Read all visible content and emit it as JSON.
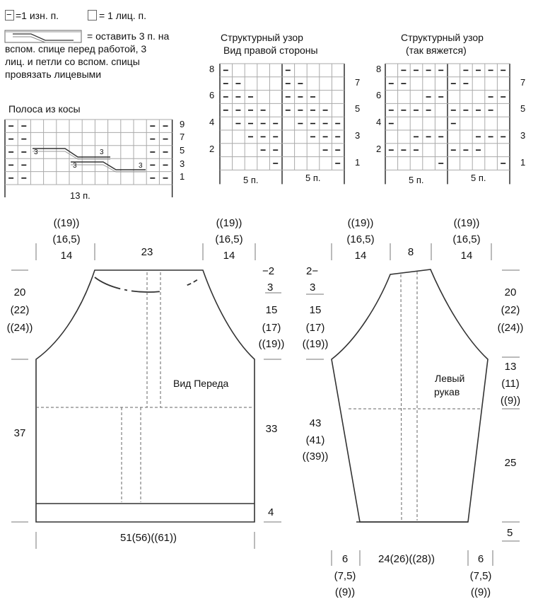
{
  "legend": {
    "purl_symbol": "−",
    "purl_label": "=1 изн. п.",
    "knit_label": "= 1 лиц. п.",
    "cable_num": "3",
    "cable_line1": "= оставить 3 п. на",
    "cable_line2": "вспом. спице перед работой, 3",
    "cable_line3": "лиц. и петли со вспом. спицы",
    "cable_line4": "провязать лицевыми"
  },
  "cable_chart": {
    "title": "Полоса из косы",
    "row_numbers": [
      "9",
      "7",
      "5",
      "3",
      "1"
    ],
    "width_label": "13 п.",
    "cell_mark": "3"
  },
  "texture_right": {
    "title_line1": "Структурный узор",
    "title_line2": "Вид правой стороны",
    "left_numbers": [
      "8",
      "6",
      "4",
      "2"
    ],
    "right_numbers": [
      "7",
      "5",
      "3",
      "1"
    ],
    "width_labels": [
      "5 п.",
      "5 п."
    ]
  },
  "texture_worked": {
    "title_line1": "Структурный узор",
    "title_line2": "(так вяжется)",
    "left_numbers": [
      "8",
      "6",
      "4",
      "2"
    ],
    "right_numbers": [
      "7",
      "5",
      "3",
      "1"
    ],
    "width_labels": [
      "5 п.",
      "5 п."
    ]
  },
  "front": {
    "label": "Вид Переда",
    "top_left": [
      "((19))",
      "(16,5)",
      "14"
    ],
    "top_center": "23",
    "top_right": [
      "((19))",
      "(16,5)",
      "14"
    ],
    "left_armhole": [
      "20",
      "(22)",
      "((24))"
    ],
    "left_body": "37",
    "right_neck_top": "−2",
    "right_neck_bottom": "3",
    "right_armhole": [
      "15",
      "(17)",
      "((19))"
    ],
    "right_body": "33",
    "right_rib": "4",
    "bottom_width": "51(56)((61))"
  },
  "sleeve": {
    "label_line1": "Левый",
    "label_line2": "рукав",
    "top_left": [
      "((19))",
      "(16,5)",
      "14"
    ],
    "top_center": "8",
    "top_right": [
      "((19))",
      "(16,5)",
      "14"
    ],
    "left_neck_top": "2−",
    "left_neck_bottom": "3",
    "left_raglan": [
      "15",
      "(17)",
      "((19))"
    ],
    "left_body": [
      "43",
      "(41)",
      "((39))"
    ],
    "right_raglan": [
      "20",
      "(22)",
      "((24))"
    ],
    "right_upper": [
      "13",
      "(11)",
      "((9))"
    ],
    "right_lower": "25",
    "right_cuff": "5",
    "bottom_left": [
      "6",
      "(7,5)",
      "((9))"
    ],
    "bottom_center": "24(26)((28))",
    "bottom_right": [
      "6",
      "(7,5)",
      "((9))"
    ]
  }
}
